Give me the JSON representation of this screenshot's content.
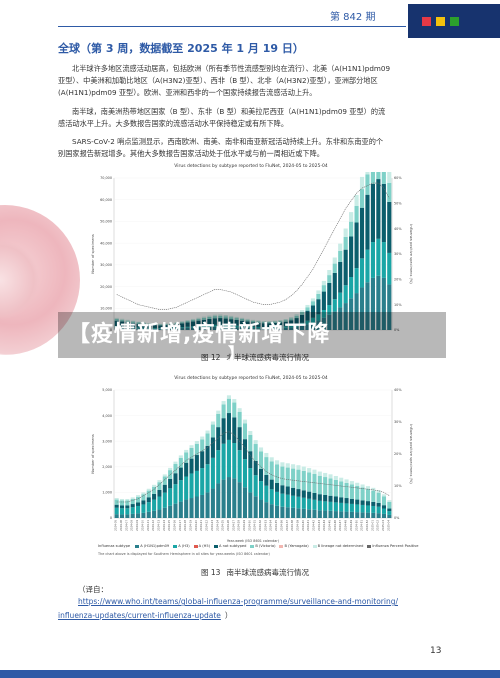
{
  "header": {
    "issue": "第 842 期",
    "colors": {
      "accent": "#2e5aa6",
      "logo_bg": "#17336e",
      "sq1": "#e63946",
      "sq2": "#f4c20d",
      "sq3": "#2ca02c"
    }
  },
  "section": {
    "title": "全球（第 3 周，数据截至 2025 年 1 月 19 日）"
  },
  "paragraphs": [
    {
      "lines": [
        "北半球许多地区流感活动居高，包括欧洲（所有季节性流感型别均在流行）、北美（A(H1N1)pdm09",
        "亚型）、中美洲和加勒比地区（A(H3N2)亚型）、西非（B 型）、北非（A(H3N2)亚型），亚洲部分地区",
        "(A(H1N1)pdm09 亚型）。欧洲、亚洲和西非的一个国家持续报告流感活动上升。"
      ]
    },
    {
      "lines": [
        "南半球，南美洲热带地区国家（B 型）、东非（B 型）和美拉尼西亚（A(H1N1)pdm09 亚型）的流",
        "感活动水平上升。大多数报告国家的流感活动水平保持稳定或有所下降。"
      ]
    },
    {
      "lines": [
        "SARS-CoV-2 哨点监测显示，西南欧洲、南美、南非和南亚新冠活动持续上升。东非和东南亚的个",
        "别国家报告新冠增多。其他大多数报告国家活动处于低水平或与前一周相近或下降。"
      ]
    }
  ],
  "figure1": {
    "caption_num": "图 12",
    "caption_text": "北半球流感病毒流行情况",
    "chart_title": "Virus detections by subtype reported to FluNet, 2024-05 to 2025-04",
    "note": "The chart above is displayed for Northern Hemisphere in all sites for year-weeks (ISO 8601 calendar)"
  },
  "figure2": {
    "caption_num": "图 13",
    "caption_text": "南半球流感病毒流行情况",
    "chart_title": "Virus detections by subtype reported to FluNet, 2024-05 to 2025-04",
    "note": "The chart above is displayed for Southern Hemisphere in all sites for year-weeks (ISO 8601 calendar)",
    "legend_title": "Influenza subtype",
    "legend": [
      "A (H1N1)pdm09",
      "A (H3)",
      "A (H5)",
      "A not subtyped",
      "B (Victoria)",
      "B (Yamagata)",
      "B lineage not determined",
      "Influenza Percent Positive"
    ]
  },
  "banner": {
    "line1": "【疫情新增,疫情新增下降",
    "line2": "】"
  },
  "source": {
    "label": "（译自：",
    "link1": "https://www.who.int/teams/global-influenza-programme/surveillance-and-monitoring/",
    "link2": "influenza-updates/current-influenza-update",
    "close": "）"
  },
  "page_number": "13",
  "chart_data": [
    {
      "type": "bar",
      "title": "Virus detections by subtype reported to FluNet, 2024-05 to 2025-04",
      "ylabel": "Number of specimens",
      "y2label": "Influenza positive specimens (%)",
      "ylim": [
        0,
        70000
      ],
      "yticks": [
        0,
        10000,
        20000,
        30000,
        40000,
        50000,
        60000,
        70000
      ],
      "ytick_labels": [
        "0",
        "10,000",
        "20,000",
        "30,000",
        "40,000",
        "50,000",
        "60,000",
        "70,000"
      ],
      "y2ticks": [
        0,
        10,
        20,
        30,
        40,
        50,
        60
      ],
      "y2tick_labels": [
        "0%",
        "10%",
        "20%",
        "30%",
        "40%",
        "50%",
        "60%"
      ],
      "series": [
        {
          "name": "A (H1N1)pdm09",
          "color": "#2a7f8c",
          "values": [
            1200,
            1100,
            1000,
            900,
            800,
            700,
            650,
            600,
            600,
            650,
            700,
            800,
            900,
            1000,
            1100,
            1200,
            1300,
            1400,
            1500,
            1500,
            1400,
            1300,
            1200,
            1100,
            1000,
            900,
            850,
            800,
            800,
            850,
            900,
            1000,
            1200,
            1500,
            2000,
            2600,
            3400,
            4400,
            5600,
            7000,
            8600,
            10400,
            12400,
            14600,
            17000,
            19600,
            22000,
            24000,
            25000,
            24000,
            21000
          ]
        },
        {
          "name": "A (H3)",
          "color": "#1aa6a6",
          "values": [
            600,
            550,
            500,
            450,
            400,
            380,
            350,
            330,
            320,
            330,
            350,
            380,
            420,
            480,
            550,
            620,
            700,
            780,
            860,
            900,
            880,
            840,
            780,
            720,
            660,
            600,
            560,
            540,
            540,
            560,
            600,
            680,
            800,
            1000,
            1300,
            1700,
            2200,
            2800,
            3600,
            4500,
            5600,
            6800,
            8200,
            9800,
            11500,
            13400,
            15000,
            16500,
            17000,
            16500,
            14500
          ]
        },
        {
          "name": "A not subtyped",
          "color": "#0b5e6c",
          "values": [
            2500,
            2300,
            2100,
            1900,
            1700,
            1550,
            1400,
            1300,
            1250,
            1300,
            1400,
            1550,
            1750,
            2000,
            2250,
            2500,
            2700,
            2900,
            3050,
            3100,
            3000,
            2850,
            2650,
            2450,
            2250,
            2050,
            1900,
            1800,
            1800,
            1850,
            1950,
            2150,
            2500,
            3000,
            3700,
            4600,
            5700,
            7000,
            8500,
            10200,
            12100,
            14200,
            16400,
            18700,
            21000,
            23300,
            25300,
            26800,
            27500,
            26800,
            23500
          ]
        },
        {
          "name": "B (Victoria)",
          "color": "#7fd1c8",
          "values": [
            800,
            740,
            680,
            620,
            560,
            510,
            470,
            440,
            420,
            430,
            460,
            500,
            560,
            640,
            720,
            800,
            870,
            940,
            990,
            1000,
            970,
            920,
            860,
            800,
            740,
            680,
            630,
            600,
            600,
            620,
            660,
            740,
            860,
            1040,
            1280,
            1580,
            1960,
            2420,
            2960,
            3580,
            4280,
            5060,
            5900,
            6800,
            7700,
            8600,
            9400,
            10000,
            10300,
            10000,
            8800
          ]
        },
        {
          "name": "B lineage not determined",
          "color": "#c9ece6",
          "values": [
            500,
            460,
            420,
            380,
            350,
            320,
            300,
            280,
            270,
            280,
            300,
            330,
            370,
            420,
            480,
            530,
            580,
            620,
            650,
            660,
            640,
            610,
            570,
            530,
            490,
            450,
            420,
            400,
            400,
            410,
            440,
            490,
            570,
            690,
            850,
            1050,
            1300,
            1600,
            1950,
            2350,
            2800,
            3300,
            3850,
            4400,
            5000,
            5600,
            6100,
            6500,
            6700,
            6500,
            5700
          ]
        }
      ],
      "percent_positive": [
        14,
        13,
        12,
        11,
        10,
        9.5,
        9,
        8.5,
        8,
        8,
        8.5,
        9,
        10,
        11,
        12,
        13,
        14,
        15,
        16,
        16,
        15.5,
        15,
        14,
        13,
        12,
        11,
        10.5,
        10,
        10,
        10.5,
        11,
        12,
        13.5,
        15.5,
        18,
        21,
        24,
        28,
        32,
        36,
        40,
        44,
        48,
        51,
        54,
        56,
        57,
        58,
        58,
        56,
        52
      ]
    },
    {
      "type": "bar",
      "title": "Virus detections by subtype reported to FluNet, 2024-05 to 2025-04",
      "ylabel": "Number of specimens",
      "y2label": "Influenza positive specimens (%)",
      "xlabel": "Year-week (ISO 8601 calendar)",
      "ylim": [
        0,
        5000
      ],
      "yticks": [
        0,
        1000,
        2000,
        3000,
        4000,
        5000
      ],
      "ytick_labels": [
        "0",
        "1,000",
        "2,000",
        "3,000",
        "4,000",
        "5,000"
      ],
      "y2ticks": [
        0,
        10,
        20,
        30,
        40
      ],
      "y2tick_labels": [
        "0%",
        "10%",
        "20%",
        "30%",
        "40%"
      ],
      "categories": [
        "2024-05",
        "2024-06",
        "2024-07",
        "2024-08",
        "2024-09",
        "2024-10",
        "2024-11",
        "2024-12",
        "2024-13",
        "2024-14",
        "2024-15",
        "2024-16",
        "2024-17",
        "2024-18",
        "2024-19",
        "2024-20",
        "2024-21",
        "2024-22",
        "2024-23",
        "2024-24",
        "2024-25",
        "2024-26",
        "2024-27",
        "2024-28",
        "2024-29",
        "2024-30",
        "2024-31",
        "2024-32",
        "2024-33",
        "2024-34",
        "2024-35",
        "2024-36",
        "2024-37",
        "2024-38",
        "2024-39",
        "2024-40",
        "2024-41",
        "2024-42",
        "2024-43",
        "2024-44",
        "2024-45",
        "2024-46",
        "2024-47",
        "2024-48",
        "2024-49",
        "2024-50",
        "2024-51",
        "2024-52",
        "2025-01",
        "2025-02",
        "2025-03",
        "2025-04"
      ],
      "series": [
        {
          "name": "A (H1N1)pdm09",
          "color": "#2a7f8c",
          "values": [
            150,
            140,
            140,
            160,
            180,
            200,
            240,
            280,
            330,
            400,
            480,
            560,
            640,
            720,
            780,
            840,
            900,
            1000,
            1150,
            1350,
            1500,
            1600,
            1550,
            1400,
            1200,
            1000,
            850,
            720,
            620,
            540,
            480,
            440,
            420,
            400,
            380,
            360,
            340,
            320,
            300,
            290,
            280,
            270,
            260,
            250,
            240,
            230,
            220,
            210,
            200,
            190,
            160,
            120
          ]
        },
        {
          "name": "A (H3)",
          "color": "#1aa6a6",
          "values": [
            250,
            240,
            240,
            260,
            290,
            330,
            380,
            440,
            510,
            590,
            680,
            760,
            840,
            900,
            960,
            1000,
            1050,
            1100,
            1200,
            1300,
            1400,
            1450,
            1380,
            1250,
            1100,
            950,
            820,
            720,
            640,
            580,
            540,
            510,
            490,
            470,
            450,
            430,
            410,
            390,
            370,
            360,
            350,
            340,
            330,
            320,
            310,
            300,
            290,
            280,
            270,
            250,
            210,
            150
          ]
        },
        {
          "name": "A not subtyped",
          "color": "#0b5e6c",
          "values": [
            120,
            115,
            115,
            125,
            140,
            160,
            190,
            220,
            260,
            310,
            370,
            430,
            490,
            540,
            580,
            620,
            660,
            720,
            800,
            900,
            1000,
            1050,
            1000,
            900,
            780,
            660,
            560,
            480,
            420,
            380,
            350,
            330,
            320,
            310,
            300,
            290,
            280,
            270,
            260,
            250,
            240,
            230,
            220,
            210,
            200,
            190,
            180,
            170,
            160,
            150,
            130,
            100
          ]
        },
        {
          "name": "B (Victoria)",
          "color": "#7fd1c8",
          "values": [
            200,
            190,
            190,
            200,
            220,
            240,
            260,
            280,
            300,
            320,
            340,
            360,
            380,
            400,
            420,
            440,
            460,
            480,
            500,
            520,
            540,
            560,
            580,
            600,
            620,
            640,
            660,
            680,
            700,
            710,
            720,
            730,
            740,
            750,
            760,
            760,
            750,
            740,
            720,
            700,
            680,
            650,
            620,
            590,
            560,
            530,
            500,
            470,
            440,
            400,
            340,
            260
          ]
        },
        {
          "name": "B lineage not determined",
          "color": "#c9ece6",
          "values": [
            60,
            58,
            58,
            60,
            64,
            68,
            72,
            76,
            80,
            84,
            88,
            92,
            96,
            100,
            104,
            108,
            112,
            116,
            120,
            124,
            128,
            132,
            136,
            140,
            144,
            148,
            152,
            156,
            160,
            162,
            164,
            166,
            168,
            170,
            172,
            172,
            170,
            168,
            164,
            160,
            156,
            150,
            144,
            138,
            132,
            126,
            120,
            114,
            108,
            100,
            86,
            66
          ]
        }
      ],
      "percent_positive": [
        5,
        5,
        5,
        5.5,
        6,
        7,
        8,
        9,
        10.5,
        12,
        13.5,
        15,
        16.5,
        18,
        19,
        20,
        21,
        22,
        23.5,
        25,
        26.5,
        27,
        26,
        24,
        22,
        19.5,
        17.5,
        16,
        14.5,
        13.5,
        12.8,
        12.3,
        12,
        11.8,
        11.6,
        11.4,
        11.2,
        11,
        10.8,
        10.6,
        10.4,
        10.2,
        10,
        9.8,
        9.6,
        9.4,
        9.2,
        9,
        8.8,
        8.5,
        8,
        7
      ]
    }
  ]
}
